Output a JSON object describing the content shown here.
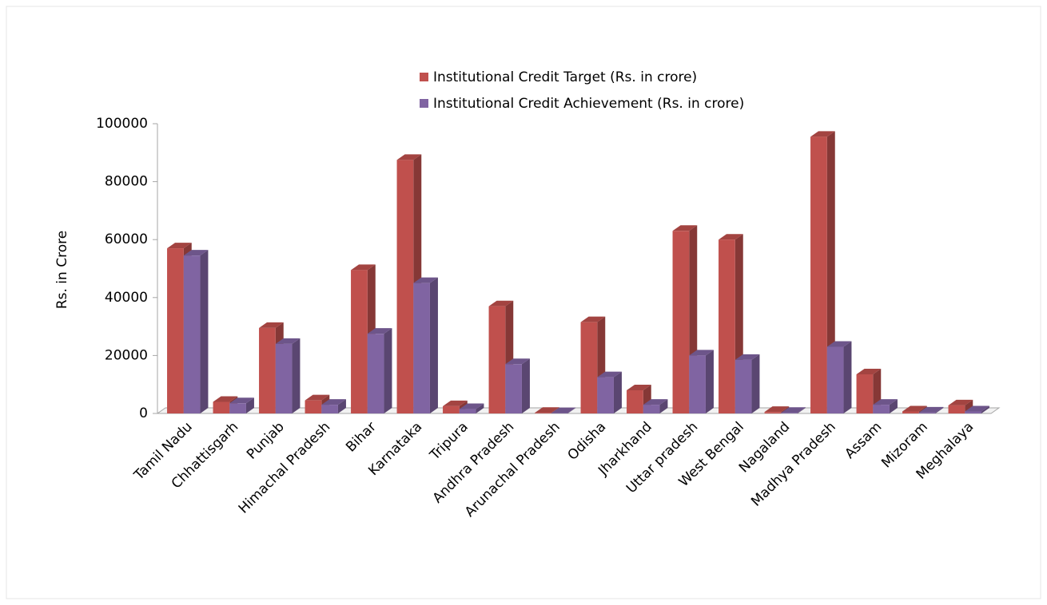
{
  "chart_data": {
    "type": "bar3d",
    "y_label": "Rs. in Crore",
    "categories": [
      "Tamil Nadu",
      "Chhattisgarh",
      "Punjab",
      "Himachal Pradesh",
      "Bihar",
      "Karnataka",
      "Tripura",
      "Andhra Pradesh",
      "Arunachal Pradesh",
      "Odisha",
      "Jharkhand",
      "Uttar pradesh",
      "West Bengal",
      "Nagaland",
      "Madhya Pradesh",
      "Assam",
      "Mizoram",
      "Meghalaya"
    ],
    "series": [
      {
        "name": "Institutional Credit Target (Rs. in crore)",
        "color": "#c0504d",
        "values": [
          57000,
          4000,
          29500,
          4500,
          49500,
          87500,
          2500,
          37000,
          200,
          31500,
          8000,
          63000,
          60000,
          500,
          95500,
          13500,
          700,
          2800
        ]
      },
      {
        "name": "Institutional Credit Achievement (Rs. in crore)",
        "color": "#8064a2",
        "values": [
          54500,
          3500,
          24000,
          3000,
          27500,
          45000,
          1500,
          17000,
          100,
          12500,
          3000,
          20000,
          18500,
          200,
          23000,
          3000,
          300,
          700
        ]
      }
    ],
    "ylim": [
      0,
      100000
    ],
    "yticks": [
      0,
      20000,
      40000,
      60000,
      80000,
      100000
    ],
    "grid": false
  }
}
